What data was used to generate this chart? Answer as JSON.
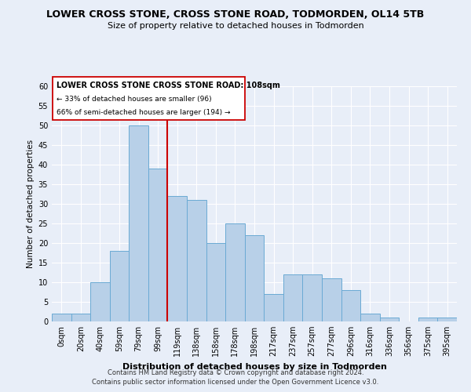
{
  "title": "LOWER CROSS STONE, CROSS STONE ROAD, TODMORDEN, OL14 5TB",
  "subtitle": "Size of property relative to detached houses in Todmorden",
  "xlabel": "Distribution of detached houses by size in Todmorden",
  "ylabel": "Number of detached properties",
  "bin_labels": [
    "0sqm",
    "20sqm",
    "40sqm",
    "59sqm",
    "79sqm",
    "99sqm",
    "119sqm",
    "138sqm",
    "158sqm",
    "178sqm",
    "198sqm",
    "217sqm",
    "237sqm",
    "257sqm",
    "277sqm",
    "296sqm",
    "316sqm",
    "336sqm",
    "356sqm",
    "375sqm",
    "395sqm"
  ],
  "bar_heights": [
    2,
    2,
    10,
    18,
    50,
    39,
    32,
    31,
    20,
    25,
    22,
    7,
    12,
    12,
    11,
    8,
    2,
    1,
    0,
    1,
    1
  ],
  "bar_color": "#b8d0e8",
  "bar_edge_color": "#6aaad4",
  "vline_x_index": 5,
  "vline_color": "#cc0000",
  "ylim": [
    0,
    60
  ],
  "yticks": [
    0,
    5,
    10,
    15,
    20,
    25,
    30,
    35,
    40,
    45,
    50,
    55,
    60
  ],
  "annotation_title": "LOWER CROSS STONE CROSS STONE ROAD: 108sqm",
  "annotation_line1": "← 33% of detached houses are smaller (96)",
  "annotation_line2": "66% of semi-detached houses are larger (194) →",
  "footer_line1": "Contains HM Land Registry data © Crown copyright and database right 2024.",
  "footer_line2": "Contains public sector information licensed under the Open Government Licence v3.0.",
  "bg_color": "#e8eef8",
  "grid_color": "#ffffff",
  "title_fontsize": 9,
  "subtitle_fontsize": 8,
  "xlabel_fontsize": 8,
  "ylabel_fontsize": 7.5,
  "tick_fontsize": 7
}
